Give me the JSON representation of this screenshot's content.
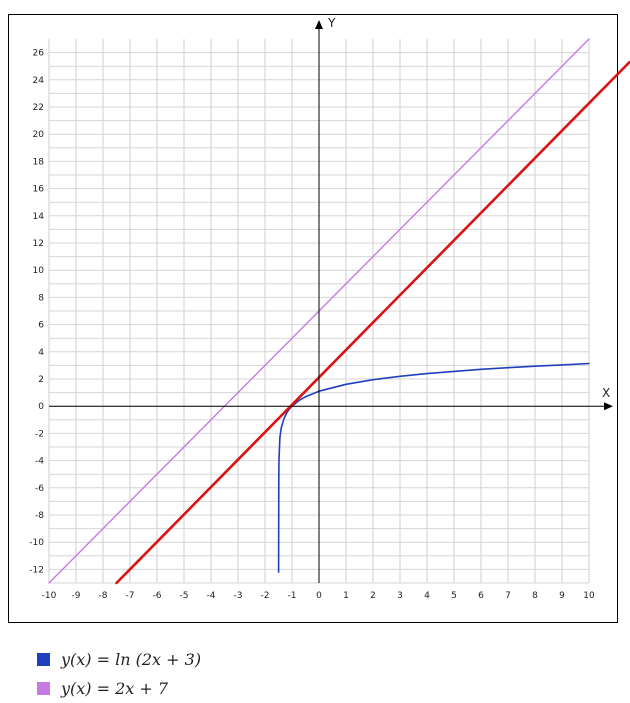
{
  "chart_data": {
    "type": "line",
    "x_axis_label": "X",
    "y_axis_label": "Y",
    "xlim": [
      -10,
      10
    ],
    "ylim": [
      -13,
      27
    ],
    "x_ticks": [
      "-10",
      "-9",
      "-8",
      "-7",
      "-6",
      "-5",
      "-4",
      "-3",
      "-2",
      "-1",
      "0",
      "1",
      "2",
      "3",
      "4",
      "5",
      "6",
      "7",
      "8",
      "9",
      "10"
    ],
    "y_ticks": [
      "-12",
      "-10",
      "-8",
      "-6",
      "-4",
      "-2",
      "0",
      "2",
      "4",
      "6",
      "8",
      "10",
      "12",
      "14",
      "16",
      "18",
      "20",
      "22",
      "24",
      "26"
    ],
    "grid": true,
    "series": [
      {
        "name": "y(x) = ln(2x + 3)",
        "formula": "ln(2x+3)",
        "color": "#1f3fbf",
        "x": [
          -1.495,
          -1.49,
          -1.48,
          -1.45,
          -1.4,
          -1.3,
          -1.2,
          -1.1,
          -1.0,
          -0.75,
          -0.5,
          0,
          1,
          2,
          3,
          4,
          5,
          6,
          7,
          8,
          9,
          10
        ],
        "y": [
          -12.2,
          -5.3,
          -3.9,
          -2.3,
          -1.61,
          -0.92,
          -0.51,
          -0.22,
          0.0,
          0.41,
          0.69,
          1.1,
          1.61,
          1.95,
          2.2,
          2.4,
          2.56,
          2.71,
          2.83,
          2.94,
          3.04,
          3.14
        ]
      },
      {
        "name": "y(x) = 2x + 7",
        "formula": "2x+7",
        "color": "#c77ae6",
        "x": [
          -10,
          10
        ],
        "y": [
          -13,
          27
        ]
      },
      {
        "name": "",
        "formula": "",
        "color": "#dd1111",
        "x": [
          -7.5,
          11.5
        ],
        "y": [
          -13,
          25.3
        ]
      }
    ]
  },
  "legend": {
    "entries": [
      {
        "label": "y(x) = ln (2x + 3)",
        "color": "#1f3fbf"
      },
      {
        "label": "y(x) = 2x + 7",
        "color": "#c77ae6"
      }
    ]
  }
}
